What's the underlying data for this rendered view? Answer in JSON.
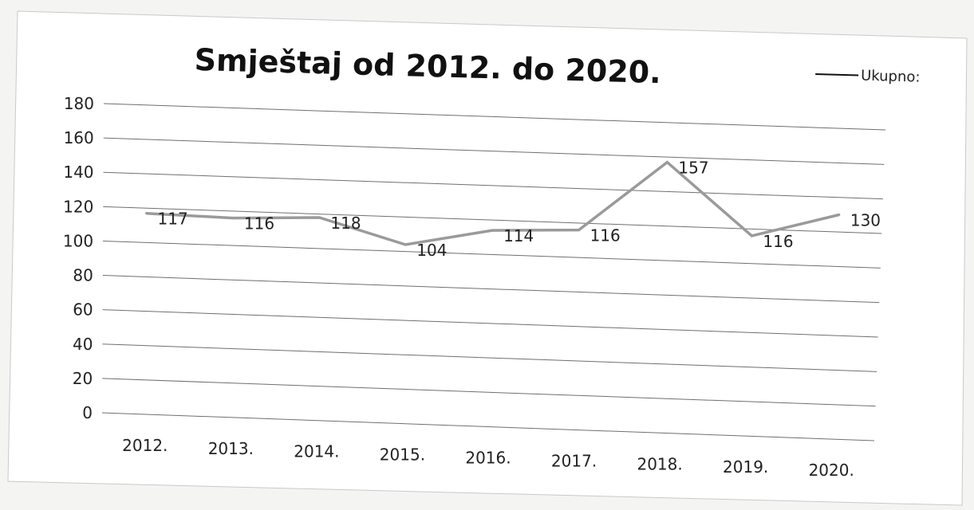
{
  "chart_data": {
    "type": "line",
    "title": "Smještaj od 2012. do 2020.",
    "xlabel": "",
    "ylabel": "",
    "categories": [
      "2012.",
      "2013.",
      "2014.",
      "2015.",
      "2016.",
      "2017.",
      "2018.",
      "2019.",
      "2020."
    ],
    "series": [
      {
        "name": "Ukupno:",
        "values": [
          117,
          116,
          118,
          104,
          114,
          116,
          157,
          116,
          130
        ],
        "color": "#9a9a9a"
      }
    ],
    "ylim": [
      0,
      180
    ],
    "yticks": [
      "0",
      "20",
      "40",
      "60",
      "80",
      "100",
      "120",
      "140",
      "160",
      "180"
    ],
    "grid": true,
    "legend_position": "top-right"
  }
}
